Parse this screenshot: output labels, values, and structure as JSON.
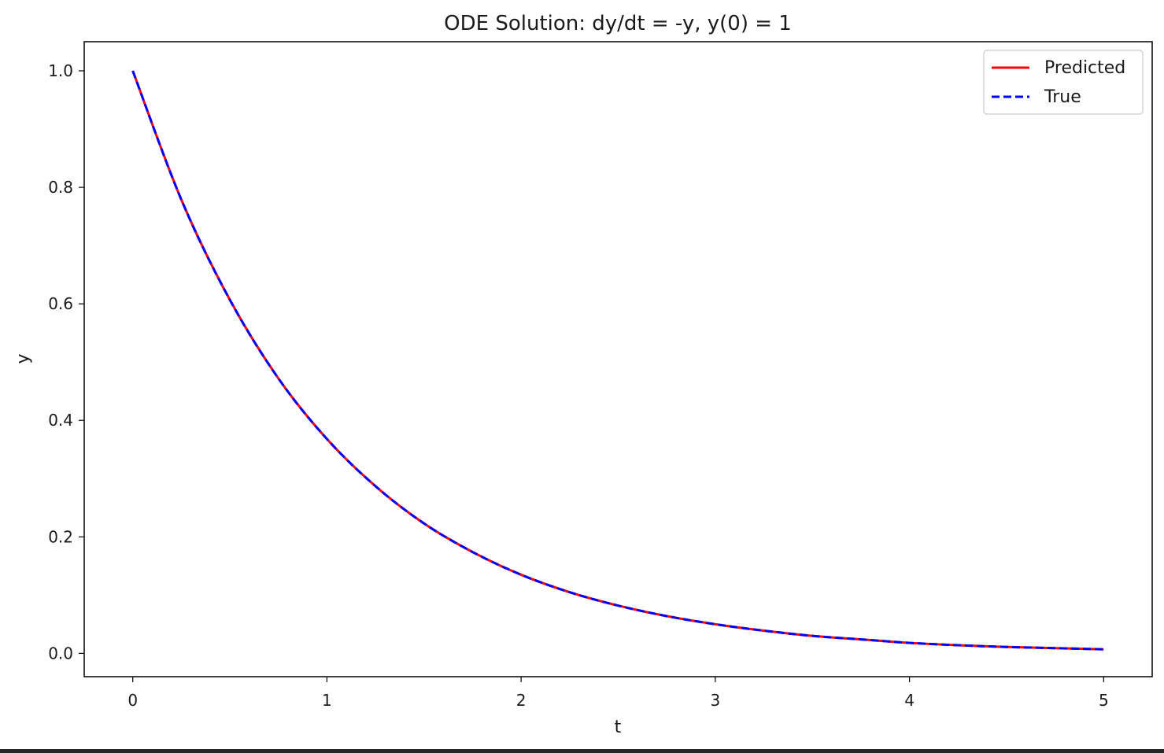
{
  "chart_data": {
    "type": "line",
    "title": "ODE Solution: dy/dt = -y, y(0) = 1",
    "xlabel": "t",
    "ylabel": "y",
    "xlim": [
      -0.25,
      5.25
    ],
    "ylim": [
      -0.04,
      1.05
    ],
    "xticks": [
      0,
      1,
      2,
      3,
      4,
      5
    ],
    "xtick_labels": [
      "0",
      "1",
      "2",
      "3",
      "4",
      "5"
    ],
    "yticks": [
      0.0,
      0.2,
      0.4,
      0.6,
      0.8,
      1.0
    ],
    "ytick_labels": [
      "0.0",
      "0.2",
      "0.4",
      "0.6",
      "0.8",
      "1.0"
    ],
    "grid": false,
    "legend_position": "top-right",
    "x": [
      0,
      0.25,
      0.5,
      0.75,
      1,
      1.25,
      1.5,
      1.75,
      2,
      2.25,
      2.5,
      2.75,
      3,
      3.25,
      3.5,
      3.75,
      4,
      4.25,
      4.5,
      4.75,
      5
    ],
    "series": [
      {
        "name": "Predicted",
        "color": "#ff0000",
        "style": "solid",
        "values": [
          1.0,
          0.779,
          0.607,
          0.472,
          0.368,
          0.287,
          0.223,
          0.174,
          0.135,
          0.105,
          0.082,
          0.064,
          0.05,
          0.039,
          0.03,
          0.024,
          0.018,
          0.014,
          0.011,
          0.009,
          0.007
        ]
      },
      {
        "name": "True",
        "color": "#0000ff",
        "style": "dashed",
        "values": [
          1.0,
          0.779,
          0.607,
          0.472,
          0.368,
          0.287,
          0.223,
          0.174,
          0.135,
          0.105,
          0.082,
          0.064,
          0.05,
          0.039,
          0.03,
          0.024,
          0.018,
          0.014,
          0.011,
          0.009,
          0.007
        ]
      }
    ]
  }
}
